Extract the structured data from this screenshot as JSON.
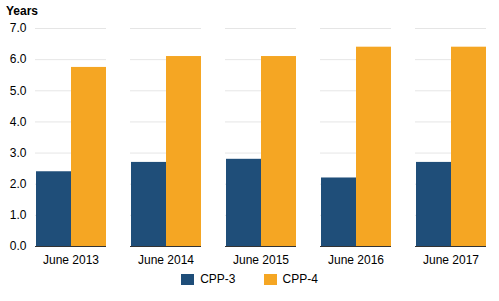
{
  "chart_data": {
    "type": "bar",
    "ylabel": "Years",
    "categories": [
      "June 2013",
      "June 2014",
      "June 2015",
      "June 2016",
      "June 2017"
    ],
    "series": [
      {
        "name": "CPP-3",
        "color": "#1f4e79",
        "values": [
          2.4,
          2.7,
          2.8,
          2.2,
          2.7
        ]
      },
      {
        "name": "CPP-4",
        "color": "#f5a623",
        "values": [
          5.75,
          6.1,
          6.1,
          6.4,
          6.4
        ]
      }
    ],
    "ylim": [
      0,
      7
    ],
    "yticks": [
      0,
      1,
      2,
      3,
      4,
      5,
      6,
      7
    ],
    "grid": true,
    "legend": "bottom"
  }
}
